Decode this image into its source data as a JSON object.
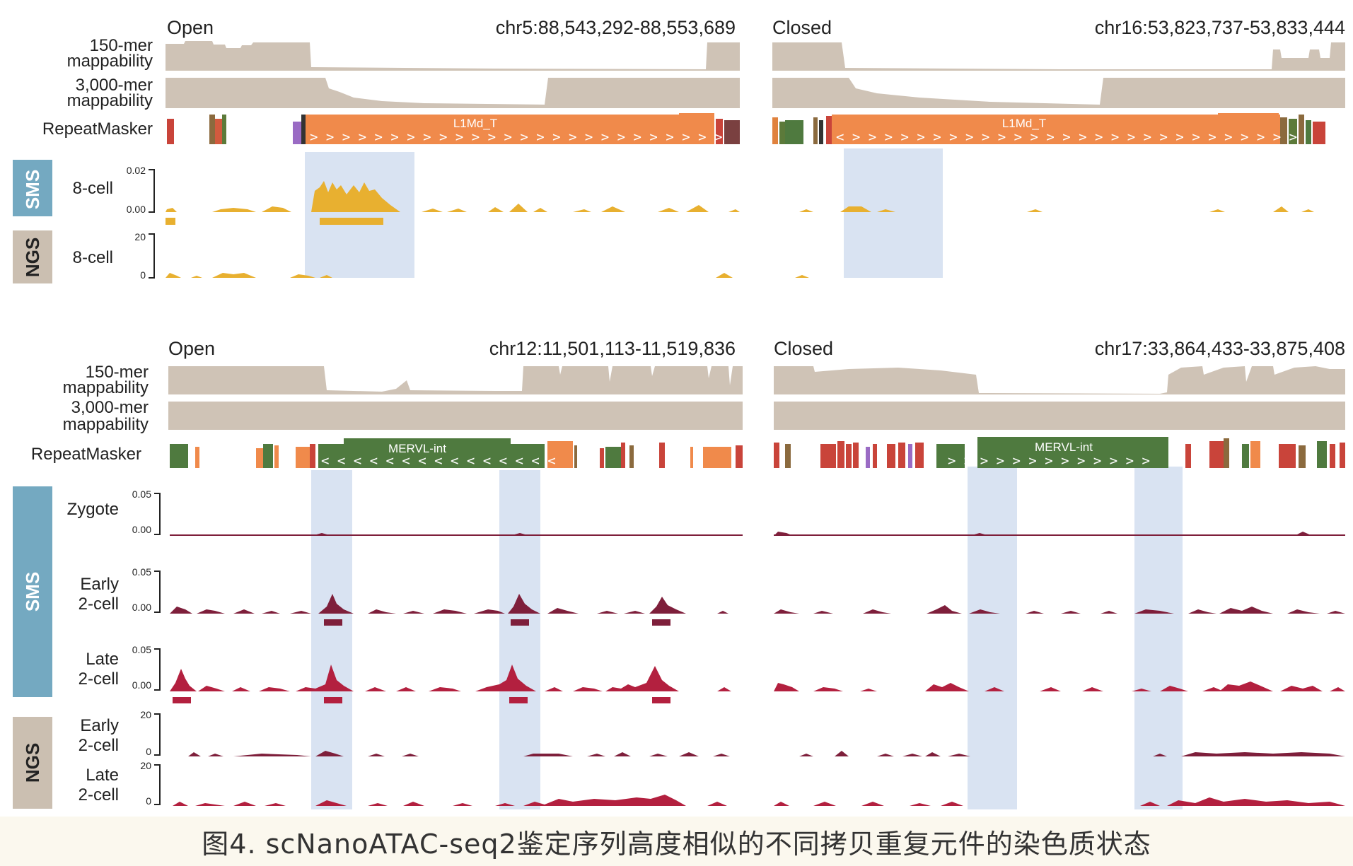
{
  "colors": {
    "mappability": "#cfc3b6",
    "highlight": "#d9e3f2",
    "sms_box": "#74a9c1",
    "ngs_box": "#cbbfb1",
    "repeat_orange": "#f08a4b",
    "repeat_green": "#4f7a3f",
    "gold": "#e8b030",
    "maroon": "#7e1f3b",
    "crimson": "#b3203f",
    "axis": "#222222"
  },
  "labels": {
    "mer150_l1": "150-mer",
    "mer3000_l1": "3,000-mer",
    "mappability": "mappability",
    "repeatmasker": "RepeatMasker",
    "sms": "SMS",
    "ngs": "NGS",
    "cell8": "8-cell",
    "zygote": "Zygote",
    "early": "Early",
    "late": "Late",
    "cell2": "2-cell"
  },
  "top": {
    "left": {
      "state": "Open",
      "coords": "chr5:88,543,292-88,553,689",
      "element": "L1Md_T"
    },
    "right": {
      "state": "Closed",
      "coords": "chr16:53,823,737-53,833,444",
      "element": "L1Md_T"
    },
    "sms_axis": {
      "top": "0.02",
      "bottom": "0.00"
    },
    "ngs_axis": {
      "top": "20",
      "bottom": "0"
    }
  },
  "bottom": {
    "left": {
      "state": "Open",
      "coords": "chr12:11,501,113-11,519,836",
      "element": "MERVL-int"
    },
    "right": {
      "state": "Closed",
      "coords": "chr17:33,864,433-33,875,408",
      "element": "MERVL-int"
    },
    "sms_axis": {
      "top": "0.05",
      "bottom": "0.00"
    },
    "ngs_axis": {
      "top": "20",
      "bottom": "0"
    }
  },
  "caption": "图4. scNanoATAC-seq2鉴定序列高度相似的不同拷贝重复元件的染色质状态"
}
